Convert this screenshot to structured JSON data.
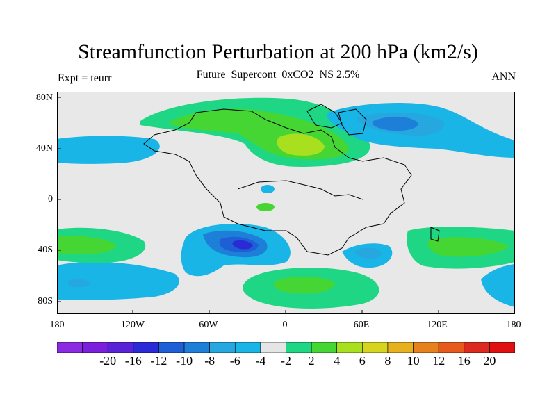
{
  "title": "Streamfunction Perturbation at 200 hPa (km2/s)",
  "subtitle": "Future_Supercont_0xCO2_NS 2.5%",
  "left_label": "Expt = teurr",
  "right_label": "ANN",
  "map": {
    "lat_ticks": [
      "80N",
      "40N",
      "0",
      "40S",
      "80S"
    ],
    "lon_ticks": [
      "180",
      "120W",
      "60W",
      "0",
      "60E",
      "120E",
      "180"
    ],
    "background_color": "#e8e8e8"
  },
  "colorbar": {
    "colors": [
      "#8a2be2",
      "#7a1fdc",
      "#5a22d6",
      "#2a2ad6",
      "#1e5fd6",
      "#1e7fd9",
      "#26a7e0",
      "#19b5e6",
      "#e5e5e5",
      "#1fd684",
      "#46d634",
      "#a8e020",
      "#d6d41e",
      "#e6b01e",
      "#e6821e",
      "#e65a1e",
      "#dc2a1e",
      "#e01010"
    ],
    "labels": [
      "-20",
      "-16",
      "-12",
      "-10",
      "-8",
      "-6",
      "-4",
      "-2",
      "2",
      "4",
      "6",
      "8",
      "10",
      "12",
      "16",
      "20"
    ]
  }
}
